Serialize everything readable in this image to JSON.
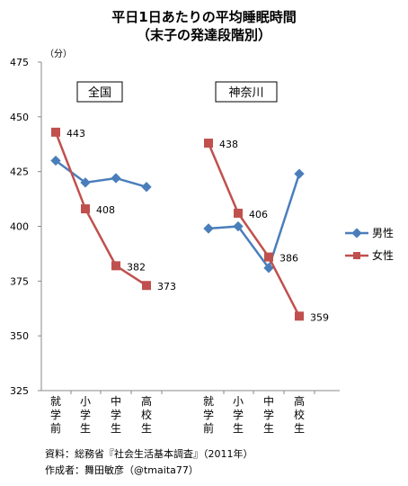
{
  "chart_data": {
    "type": "line",
    "title": "平日1日あたりの平均睡眠時間",
    "subtitle": "（末子の発達段階別）",
    "ylabel": "（分）",
    "ylim": [
      325,
      475
    ],
    "yticks": [
      325,
      350,
      375,
      400,
      425,
      450,
      475
    ],
    "grid": false,
    "legend_position": "right",
    "groups": [
      {
        "name": "全国",
        "categories": [
          "就学前",
          "小学生",
          "中学生",
          "高校生"
        ],
        "series": [
          {
            "name": "男性",
            "values": [
              430,
              420,
              422,
              418
            ],
            "labels": [
              "",
              "",
              "",
              ""
            ]
          },
          {
            "name": "女性",
            "values": [
              443,
              408,
              382,
              373
            ],
            "labels": [
              "443",
              "408",
              "382",
              "373"
            ]
          }
        ]
      },
      {
        "name": "神奈川",
        "categories": [
          "就学前",
          "小学生",
          "中学生",
          "高校生"
        ],
        "series": [
          {
            "name": "男性",
            "values": [
              399,
              400,
              381,
              424
            ],
            "labels": [
              "",
              "",
              "",
              ""
            ]
          },
          {
            "name": "女性",
            "values": [
              438,
              406,
              386,
              359
            ],
            "labels": [
              "438",
              "406",
              "386",
              "359"
            ]
          }
        ]
      }
    ],
    "legend": [
      "男性",
      "女性"
    ],
    "series_colors": {
      "男性": "#4a7ebb",
      "女性": "#c0504d"
    },
    "footer": [
      "資料：総務省『社会生活基本調査』（2011年）",
      "作成者：舞田敏彦（@tmaita77）"
    ]
  }
}
